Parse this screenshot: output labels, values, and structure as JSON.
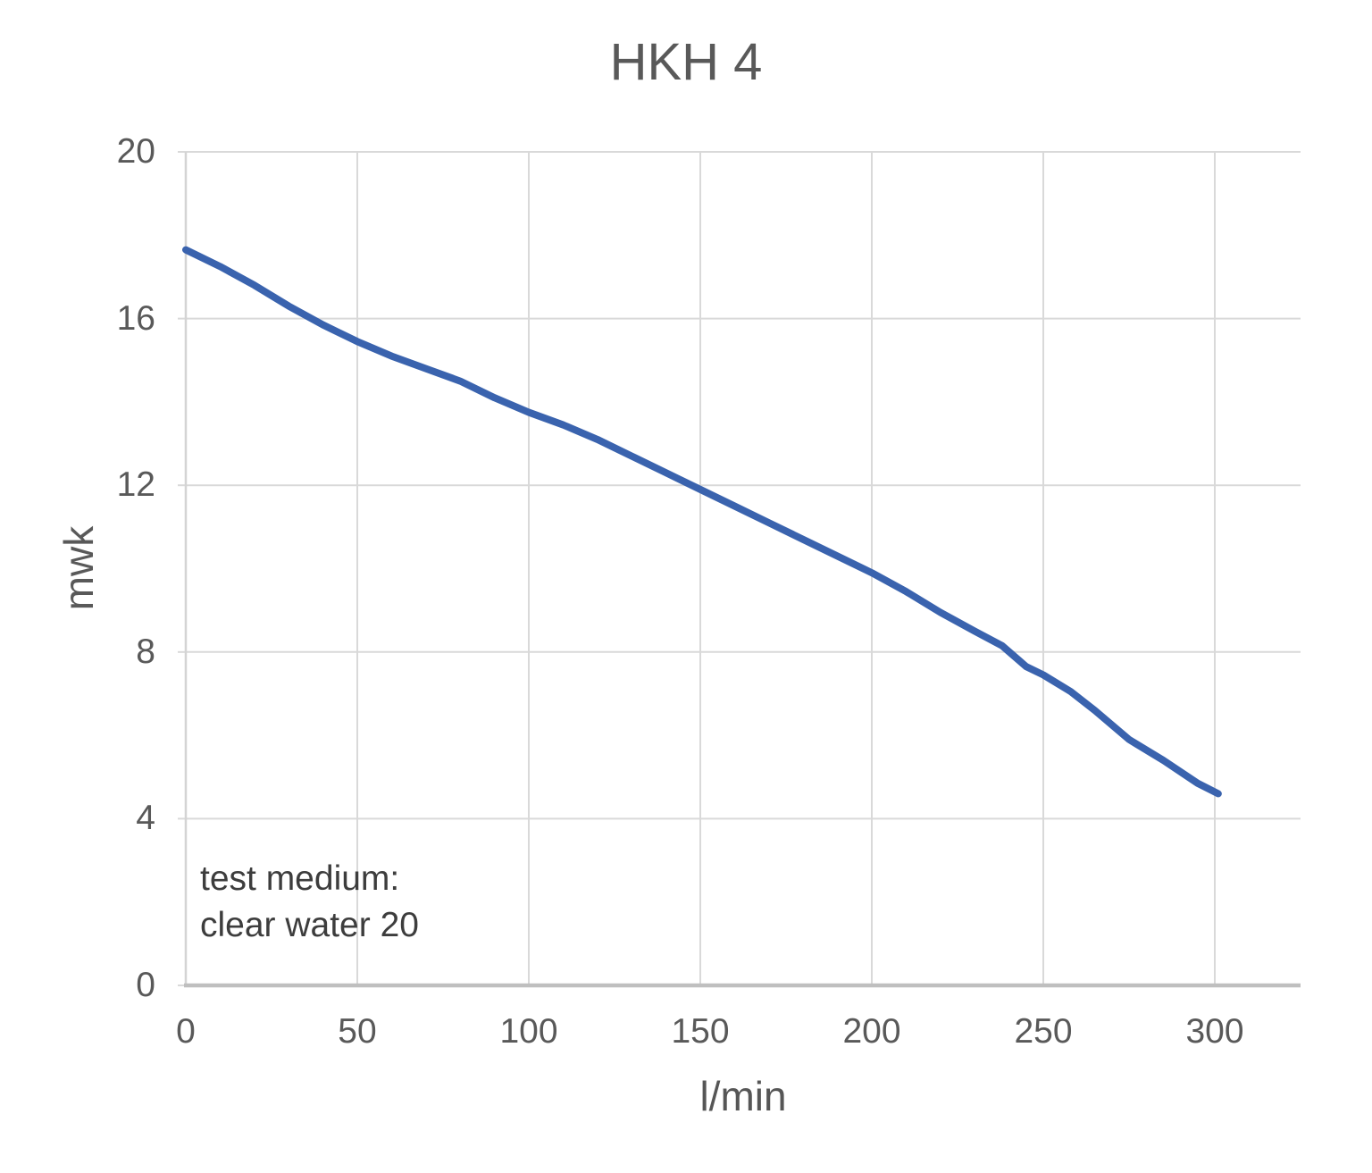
{
  "colors": {
    "curve_blue": "#3a63ae",
    "gridline": "#d9d9d9",
    "axis": "#bfbfbf",
    "axis_light": "#d4d4d4",
    "tick_text": "#595959",
    "title_text": "#595959",
    "annotation_text": "#3d3d3d"
  },
  "chart_data": {
    "type": "line",
    "title": "HKH 4",
    "xlabel": "l/min",
    "ylabel": "mwk",
    "xlim": [
      0,
      325
    ],
    "ylim": [
      0,
      20
    ],
    "x_ticks": [
      0,
      50,
      100,
      150,
      200,
      250,
      300
    ],
    "y_ticks": [
      0,
      4,
      8,
      12,
      16,
      20
    ],
    "grid": true,
    "legend": "none",
    "annotation": {
      "line1": "test medium:",
      "line2": "clear water 20"
    },
    "series": [
      {
        "name": "HKH 4",
        "color": "#3a63ae",
        "points": [
          [
            0,
            17.65
          ],
          [
            10,
            17.25
          ],
          [
            20,
            16.8
          ],
          [
            30,
            16.3
          ],
          [
            40,
            15.85
          ],
          [
            50,
            15.45
          ],
          [
            60,
            15.1
          ],
          [
            70,
            14.8
          ],
          [
            80,
            14.5
          ],
          [
            90,
            14.1
          ],
          [
            100,
            13.75
          ],
          [
            110,
            13.45
          ],
          [
            120,
            13.1
          ],
          [
            130,
            12.7
          ],
          [
            140,
            12.3
          ],
          [
            150,
            11.9
          ],
          [
            160,
            11.5
          ],
          [
            170,
            11.1
          ],
          [
            180,
            10.7
          ],
          [
            190,
            10.3
          ],
          [
            200,
            9.9
          ],
          [
            210,
            9.45
          ],
          [
            220,
            8.95
          ],
          [
            230,
            8.5
          ],
          [
            238,
            8.15
          ],
          [
            245,
            7.65
          ],
          [
            250,
            7.45
          ],
          [
            258,
            7.05
          ],
          [
            265,
            6.6
          ],
          [
            275,
            5.9
          ],
          [
            285,
            5.4
          ],
          [
            295,
            4.85
          ],
          [
            301,
            4.6
          ]
        ]
      }
    ]
  }
}
